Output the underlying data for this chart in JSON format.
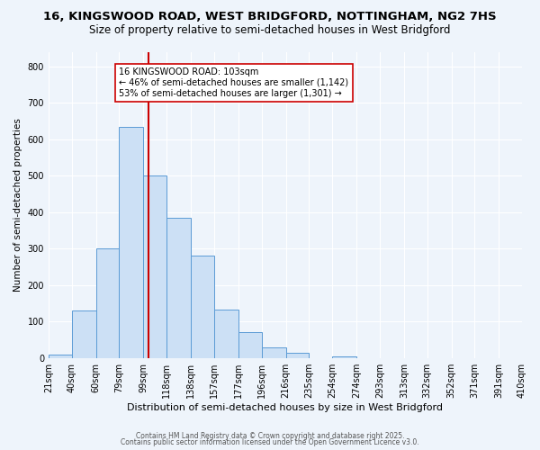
{
  "title_line1": "16, KINGSWOOD ROAD, WEST BRIDGFORD, NOTTINGHAM, NG2 7HS",
  "title_line2": "Size of property relative to semi-detached houses in West Bridgford",
  "xlabel": "Distribution of semi-detached houses by size in West Bridgford",
  "ylabel": "Number of semi-detached properties",
  "bin_labels": [
    "21sqm",
    "40sqm",
    "60sqm",
    "79sqm",
    "99sqm",
    "118sqm",
    "138sqm",
    "157sqm",
    "177sqm",
    "196sqm",
    "216sqm",
    "235sqm",
    "254sqm",
    "274sqm",
    "293sqm",
    "313sqm",
    "332sqm",
    "352sqm",
    "371sqm",
    "391sqm",
    "410sqm"
  ],
  "bin_edges": [
    21,
    40,
    60,
    79,
    99,
    118,
    138,
    157,
    177,
    196,
    216,
    235,
    254,
    274,
    293,
    313,
    332,
    352,
    371,
    391,
    410
  ],
  "bar_heights": [
    10,
    130,
    300,
    635,
    500,
    385,
    280,
    133,
    70,
    30,
    15,
    0,
    5,
    0,
    0,
    0,
    0,
    0,
    0,
    0
  ],
  "bar_color": "#cce0f5",
  "bar_edge_color": "#5b9bd5",
  "property_size": 103,
  "vline_color": "#cc0000",
  "annotation_text_line1": "16 KINGSWOOD ROAD: 103sqm",
  "annotation_text_line2": "← 46% of semi-detached houses are smaller (1,142)",
  "annotation_text_line3": "53% of semi-detached houses are larger (1,301) →",
  "annotation_box_color": "#ffffff",
  "annotation_box_edge": "#cc0000",
  "ylim": [
    0,
    840
  ],
  "yticks": [
    0,
    100,
    200,
    300,
    400,
    500,
    600,
    700,
    800
  ],
  "background_color": "#eef4fb",
  "grid_color": "#ffffff",
  "footer_line1": "Contains HM Land Registry data © Crown copyright and database right 2025.",
  "footer_line2": "Contains public sector information licensed under the Open Government Licence v3.0.",
  "title_fontsize": 9.5,
  "subtitle_fontsize": 8.5
}
